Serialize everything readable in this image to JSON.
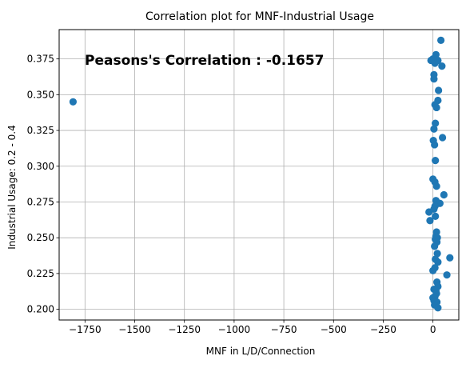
{
  "chart_data": {
    "type": "scatter",
    "title": "Correlation plot for MNF-Industrial Usage",
    "xlabel": "MNF in L/D/Connection",
    "ylabel": "Industrial Usage: 0.2 - 0.4",
    "annotation": "Peasons's Correlation : -0.1657",
    "xlim": [
      -1880,
      130
    ],
    "ylim": [
      0.1925,
      0.3955
    ],
    "xticks": [
      -1750,
      -1500,
      -1250,
      -1000,
      -750,
      -500,
      -250,
      0
    ],
    "xtick_labels": [
      "−1750",
      "−1500",
      "−1250",
      "−1000",
      "−750",
      "−500",
      "−250",
      "0"
    ],
    "yticks": [
      0.2,
      0.225,
      0.25,
      0.275,
      0.3,
      0.325,
      0.35,
      0.375
    ],
    "ytick_labels": [
      "0.200",
      "0.225",
      "0.250",
      "0.275",
      "0.300",
      "0.325",
      "0.350",
      "0.375"
    ],
    "grid": true,
    "marker_color": "#1f77b4",
    "points": [
      {
        "x": -1810,
        "y": 0.345
      },
      {
        "x": 40,
        "y": 0.388
      },
      {
        "x": 15,
        "y": 0.378
      },
      {
        "x": -10,
        "y": 0.374
      },
      {
        "x": 0,
        "y": 0.375
      },
      {
        "x": 10,
        "y": 0.372
      },
      {
        "x": 25,
        "y": 0.374
      },
      {
        "x": 45,
        "y": 0.37
      },
      {
        "x": 5,
        "y": 0.364
      },
      {
        "x": 5,
        "y": 0.361
      },
      {
        "x": 28,
        "y": 0.353
      },
      {
        "x": 25,
        "y": 0.346
      },
      {
        "x": 10,
        "y": 0.343
      },
      {
        "x": 18,
        "y": 0.341
      },
      {
        "x": 12,
        "y": 0.33
      },
      {
        "x": 5,
        "y": 0.326
      },
      {
        "x": 48,
        "y": 0.32
      },
      {
        "x": 2,
        "y": 0.318
      },
      {
        "x": 8,
        "y": 0.315
      },
      {
        "x": 12,
        "y": 0.304
      },
      {
        "x": 0,
        "y": 0.291
      },
      {
        "x": 10,
        "y": 0.289
      },
      {
        "x": 18,
        "y": 0.286
      },
      {
        "x": 55,
        "y": 0.28
      },
      {
        "x": 15,
        "y": 0.276
      },
      {
        "x": 25,
        "y": 0.274
      },
      {
        "x": 35,
        "y": 0.274
      },
      {
        "x": 10,
        "y": 0.272
      },
      {
        "x": 5,
        "y": 0.27
      },
      {
        "x": -20,
        "y": 0.268
      },
      {
        "x": 12,
        "y": 0.265
      },
      {
        "x": -15,
        "y": 0.262
      },
      {
        "x": 18,
        "y": 0.254
      },
      {
        "x": 15,
        "y": 0.251
      },
      {
        "x": 22,
        "y": 0.25
      },
      {
        "x": 12,
        "y": 0.249
      },
      {
        "x": 20,
        "y": 0.247
      },
      {
        "x": 8,
        "y": 0.244
      },
      {
        "x": 22,
        "y": 0.239
      },
      {
        "x": 85,
        "y": 0.236
      },
      {
        "x": 12,
        "y": 0.235
      },
      {
        "x": 25,
        "y": 0.233
      },
      {
        "x": 10,
        "y": 0.229
      },
      {
        "x": 0,
        "y": 0.227
      },
      {
        "x": 70,
        "y": 0.224
      },
      {
        "x": 20,
        "y": 0.219
      },
      {
        "x": 25,
        "y": 0.216
      },
      {
        "x": 5,
        "y": 0.214
      },
      {
        "x": 15,
        "y": 0.213
      },
      {
        "x": 18,
        "y": 0.211
      },
      {
        "x": 10,
        "y": 0.209
      },
      {
        "x": 0,
        "y": 0.208
      },
      {
        "x": 5,
        "y": 0.206
      },
      {
        "x": 12,
        "y": 0.205
      },
      {
        "x": 20,
        "y": 0.205
      },
      {
        "x": 8,
        "y": 0.203
      },
      {
        "x": 25,
        "y": 0.201
      }
    ]
  }
}
